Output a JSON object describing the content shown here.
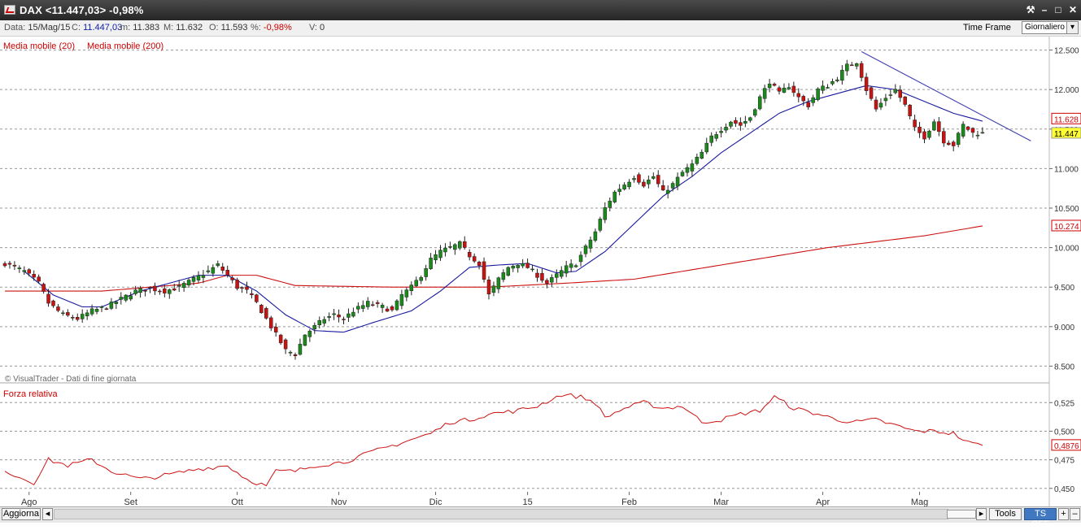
{
  "window": {
    "title": "DAX <11.447,03> -0,98%",
    "buttons": {
      "tool": "⚒",
      "minimize": "–",
      "maximize": "□",
      "close": "✕"
    }
  },
  "info": {
    "date_label": "Data: ",
    "date": "15/Mag/15",
    "close_label": "C: ",
    "close": "11.447,03",
    "min_label": "m: ",
    "min": "11.383",
    "max_label": "M: ",
    "max": "11.632",
    "open_label": "O: ",
    "open": "11.593",
    "pct_label": "%: ",
    "pct": "-0,98%",
    "vol_label": "V: ",
    "vol": "0",
    "timeframe_label": "Time Frame",
    "timeframe_value": "Giornaliero"
  },
  "bottom": {
    "refresh": "Aggiorna",
    "tools": "Tools",
    "ts": "TS OFF",
    "plus": "+",
    "minus": "–"
  },
  "colors": {
    "up": "#1a8a1a",
    "down": "#cc1111",
    "ma20": "#1a1aa0",
    "ma200": "#cc1111",
    "trendline": "#4040b0",
    "rs": "#cc1111",
    "last_price_bg": "#ffff33"
  },
  "chart_data": {
    "type": "candlestick",
    "price_panel": {
      "legend": [
        "Media mobile (20)",
        "Media mobile (200)"
      ],
      "watermark": "© VisualTrader - Dati di fine giornata",
      "y_ticks": [
        "12.500",
        "12.000",
        "11.500",
        "11.000",
        "10.500",
        "10.000",
        "9.500",
        "9.000",
        "8.500"
      ],
      "y_tick_values": [
        12500,
        12000,
        11500,
        11000,
        10500,
        10000,
        9500,
        9000,
        8500
      ],
      "ylim": [
        8350,
        12650
      ],
      "value_tags": [
        {
          "label": "11.628",
          "value": 11628,
          "style": "ma20"
        },
        {
          "label": "11.447",
          "value": 11447,
          "style": "last"
        },
        {
          "label": "10.274",
          "value": 10274,
          "style": "ma200"
        }
      ],
      "ohlc_anchors": [
        [
          0,
          9800
        ],
        [
          4,
          9700
        ],
        [
          7,
          9550
        ],
        [
          9,
          9300
        ],
        [
          12,
          9150
        ],
        [
          15,
          9100
        ],
        [
          18,
          9200
        ],
        [
          21,
          9250
        ],
        [
          24,
          9350
        ],
        [
          27,
          9450
        ],
        [
          30,
          9480
        ],
        [
          33,
          9450
        ],
        [
          36,
          9500
        ],
        [
          39,
          9600
        ],
        [
          42,
          9700
        ],
        [
          44,
          9780
        ],
        [
          46,
          9650
        ],
        [
          48,
          9500
        ],
        [
          50,
          9450
        ],
        [
          52,
          9300
        ],
        [
          54,
          9100
        ],
        [
          56,
          8900
        ],
        [
          58,
          8700
        ],
        [
          60,
          8650
        ],
        [
          62,
          8900
        ],
        [
          64,
          9000
        ],
        [
          66,
          9100
        ],
        [
          68,
          9150
        ],
        [
          70,
          9100
        ],
        [
          72,
          9200
        ],
        [
          75,
          9300
        ],
        [
          78,
          9250
        ],
        [
          80,
          9200
        ],
        [
          82,
          9400
        ],
        [
          84,
          9500
        ],
        [
          86,
          9650
        ],
        [
          88,
          9850
        ],
        [
          90,
          9950
        ],
        [
          92,
          10000
        ],
        [
          94,
          10050
        ],
        [
          96,
          9900
        ],
        [
          98,
          9800
        ],
        [
          100,
          9400
        ],
        [
          102,
          9600
        ],
        [
          104,
          9750
        ],
        [
          106,
          9800
        ],
        [
          108,
          9750
        ],
        [
          110,
          9650
        ],
        [
          112,
          9550
        ],
        [
          114,
          9650
        ],
        [
          116,
          9750
        ],
        [
          118,
          9800
        ],
        [
          120,
          10000
        ],
        [
          122,
          10200
        ],
        [
          124,
          10500
        ],
        [
          126,
          10700
        ],
        [
          128,
          10800
        ],
        [
          130,
          10900
        ],
        [
          132,
          10800
        ],
        [
          134,
          10900
        ],
        [
          136,
          10700
        ],
        [
          138,
          10800
        ],
        [
          140,
          10950
        ],
        [
          142,
          11050
        ],
        [
          144,
          11200
        ],
        [
          146,
          11400
        ],
        [
          148,
          11500
        ],
        [
          150,
          11600
        ],
        [
          152,
          11550
        ],
        [
          154,
          11650
        ],
        [
          156,
          11900
        ],
        [
          158,
          12100
        ],
        [
          160,
          11950
        ],
        [
          162,
          12050
        ],
        [
          164,
          11900
        ],
        [
          166,
          11800
        ],
        [
          168,
          12000
        ],
        [
          170,
          12050
        ],
        [
          172,
          12150
        ],
        [
          174,
          12300
        ],
        [
          176,
          12350
        ],
        [
          178,
          12000
        ],
        [
          180,
          11750
        ],
        [
          182,
          11900
        ],
        [
          184,
          12000
        ],
        [
          186,
          11800
        ],
        [
          188,
          11500
        ],
        [
          190,
          11400
        ],
        [
          192,
          11600
        ],
        [
          194,
          11350
        ],
        [
          196,
          11300
        ],
        [
          198,
          11550
        ],
        [
          200,
          11450
        ],
        [
          202,
          11447
        ]
      ],
      "ma20_anchors": [
        [
          4,
          9700
        ],
        [
          10,
          9400
        ],
        [
          16,
          9250
        ],
        [
          20,
          9250
        ],
        [
          28,
          9450
        ],
        [
          34,
          9550
        ],
        [
          40,
          9650
        ],
        [
          46,
          9650
        ],
        [
          52,
          9450
        ],
        [
          58,
          9150
        ],
        [
          64,
          8950
        ],
        [
          70,
          8930
        ],
        [
          76,
          9050
        ],
        [
          84,
          9200
        ],
        [
          90,
          9450
        ],
        [
          96,
          9750
        ],
        [
          102,
          9780
        ],
        [
          108,
          9800
        ],
        [
          114,
          9680
        ],
        [
          118,
          9700
        ],
        [
          124,
          9950
        ],
        [
          130,
          10300
        ],
        [
          136,
          10650
        ],
        [
          142,
          10900
        ],
        [
          148,
          11200
        ],
        [
          154,
          11450
        ],
        [
          160,
          11700
        ],
        [
          166,
          11850
        ],
        [
          172,
          11950
        ],
        [
          178,
          12050
        ],
        [
          184,
          12000
        ],
        [
          190,
          11850
        ],
        [
          196,
          11700
        ],
        [
          202,
          11600
        ]
      ],
      "ma200_anchors": [
        [
          0,
          9450
        ],
        [
          20,
          9450
        ],
        [
          40,
          9550
        ],
        [
          46,
          9650
        ],
        [
          52,
          9650
        ],
        [
          60,
          9520
        ],
        [
          80,
          9500
        ],
        [
          100,
          9500
        ],
        [
          116,
          9550
        ],
        [
          130,
          9600
        ],
        [
          150,
          9800
        ],
        [
          170,
          10000
        ],
        [
          190,
          10150
        ],
        [
          202,
          10274
        ]
      ],
      "trendline": [
        [
          177,
          12480
        ],
        [
          212,
          11350
        ]
      ],
      "bars": 203
    },
    "rs_panel": {
      "title": "Forza relativa",
      "y_ticks": [
        "0,525",
        "0,500",
        "0,475",
        "0,450"
      ],
      "y_tick_values": [
        0.525,
        0.5,
        0.475,
        0.45
      ],
      "ylim": [
        0.447,
        0.538
      ],
      "last_value": "0,4876",
      "anchors": [
        [
          0,
          0.465
        ],
        [
          6,
          0.455
        ],
        [
          9,
          0.475
        ],
        [
          13,
          0.47
        ],
        [
          18,
          0.475
        ],
        [
          22,
          0.465
        ],
        [
          28,
          0.458
        ],
        [
          34,
          0.462
        ],
        [
          40,
          0.467
        ],
        [
          46,
          0.47
        ],
        [
          50,
          0.458
        ],
        [
          54,
          0.452
        ],
        [
          56,
          0.465
        ],
        [
          60,
          0.465
        ],
        [
          64,
          0.47
        ],
        [
          70,
          0.473
        ],
        [
          76,
          0.482
        ],
        [
          82,
          0.49
        ],
        [
          88,
          0.498
        ],
        [
          92,
          0.508
        ],
        [
          96,
          0.51
        ],
        [
          100,
          0.515
        ],
        [
          106,
          0.518
        ],
        [
          110,
          0.522
        ],
        [
          115,
          0.532
        ],
        [
          119,
          0.53
        ],
        [
          122,
          0.525
        ],
        [
          124,
          0.512
        ],
        [
          128,
          0.52
        ],
        [
          132,
          0.525
        ],
        [
          136,
          0.52
        ],
        [
          140,
          0.522
        ],
        [
          144,
          0.508
        ],
        [
          148,
          0.51
        ],
        [
          152,
          0.515
        ],
        [
          156,
          0.518
        ],
        [
          159,
          0.53
        ],
        [
          163,
          0.52
        ],
        [
          168,
          0.515
        ],
        [
          172,
          0.51
        ],
        [
          176,
          0.508
        ],
        [
          180,
          0.51
        ],
        [
          184,
          0.505
        ],
        [
          188,
          0.5
        ],
        [
          192,
          0.5
        ],
        [
          196,
          0.498
        ],
        [
          199,
          0.49
        ],
        [
          202,
          0.4876
        ]
      ]
    },
    "x_labels": [
      {
        "label": "Ago",
        "bar": 5
      },
      {
        "label": "Set",
        "bar": 26
      },
      {
        "label": "Ott",
        "bar": 48
      },
      {
        "label": "Nov",
        "bar": 69
      },
      {
        "label": "Dic",
        "bar": 89
      },
      {
        "label": "15",
        "bar": 108
      },
      {
        "label": "Feb",
        "bar": 129
      },
      {
        "label": "Mar",
        "bar": 148
      },
      {
        "label": "Apr",
        "bar": 169
      },
      {
        "label": "Mag",
        "bar": 189
      }
    ]
  }
}
